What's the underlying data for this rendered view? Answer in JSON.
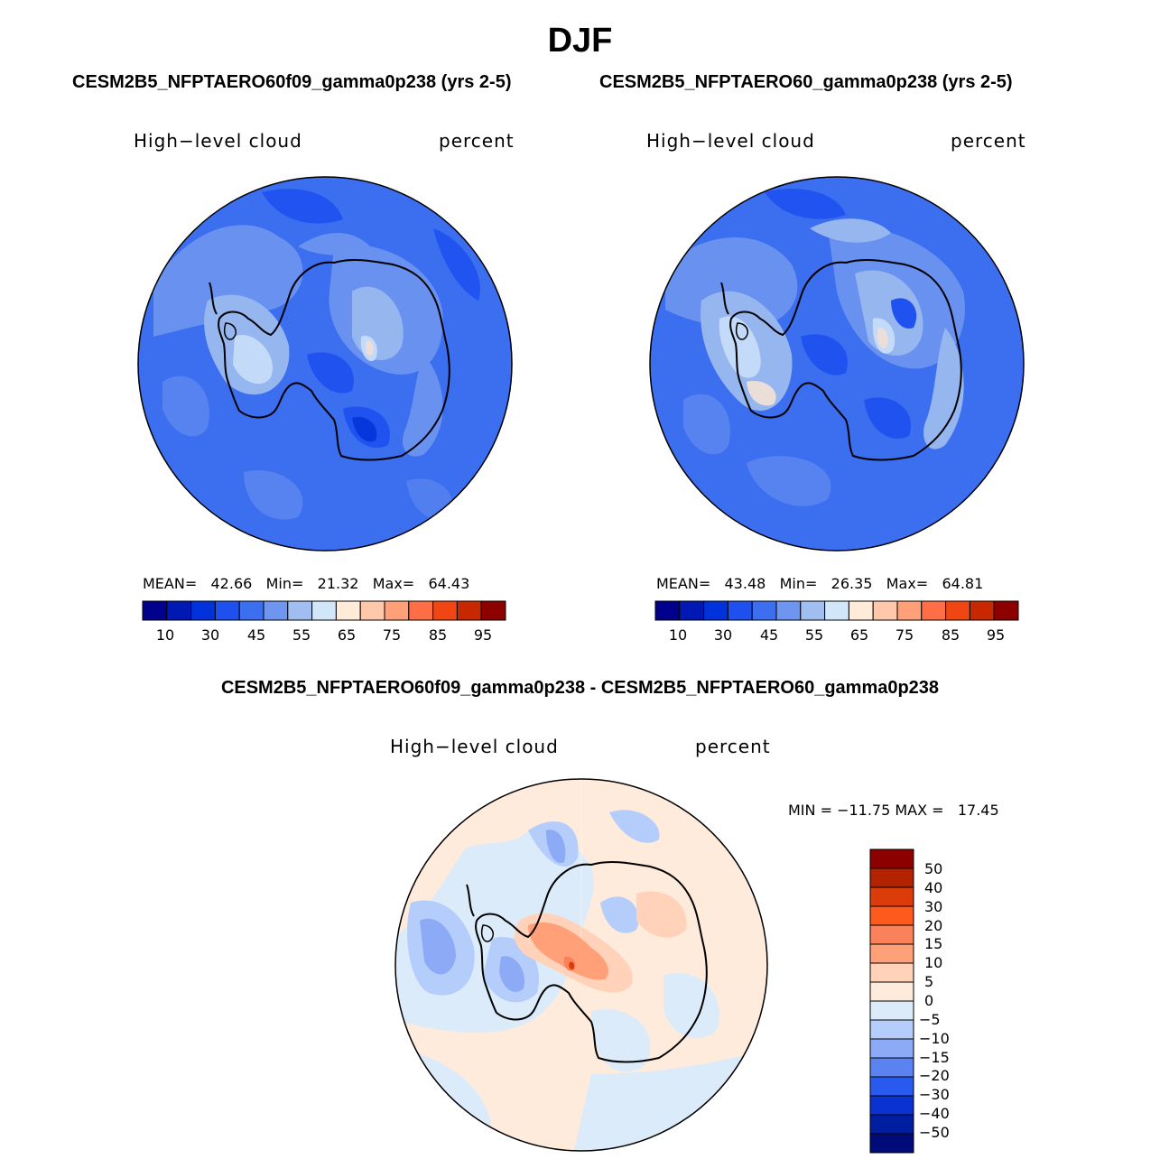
{
  "title": "DJF",
  "panels": [
    {
      "case": "CESM2B5_NFPTAERO60f09_gamma0p238 (yrs 2-5)",
      "variable": "High−level cloud",
      "units": "percent",
      "stats": {
        "mean_label": "MEAN=",
        "mean": "42.66",
        "min_label": "Min=",
        "min": "21.32",
        "max_label": "Max=",
        "max": "64.43"
      },
      "colorbar_ticks": [
        "10",
        "30",
        "45",
        "55",
        "65",
        "75",
        "85",
        "95"
      ]
    },
    {
      "case": "CESM2B5_NFPTAERO60_gamma0p238 (yrs 2-5)",
      "variable": "High−level cloud",
      "units": "percent",
      "stats": {
        "mean_label": "MEAN=",
        "mean": "43.48",
        "min_label": "Min=",
        "min": "26.35",
        "max_label": "Max=",
        "max": "64.81"
      },
      "colorbar_ticks": [
        "10",
        "30",
        "45",
        "55",
        "65",
        "75",
        "85",
        "95"
      ]
    }
  ],
  "diff": {
    "title": "CESM2B5_NFPTAERO60f09_gamma0p238 - CESM2B5_NFPTAERO60_gamma0p238",
    "variable": "High−level cloud",
    "units": "percent",
    "minmax": "MIN = −11.75 MAX =   17.45",
    "colorbar_ticks": [
      "50",
      "40",
      "30",
      "20",
      "15",
      "10",
      "5",
      "0",
      "−5",
      "−10",
      "−15",
      "−20",
      "−30",
      "−40",
      "−50"
    ]
  },
  "colors": {
    "main_scale": [
      "#00008c",
      "#0019b4",
      "#0032dc",
      "#1e50f0",
      "#3c6ef0",
      "#6e96f0",
      "#a0bef0",
      "#d2e6fa",
      "#ffebd7",
      "#ffc8aa",
      "#ffa078",
      "#ff6e46",
      "#f04614",
      "#c82800",
      "#8c0000"
    ],
    "diff_scale_top_to_bottom": [
      "#8c0000",
      "#b42300",
      "#dc3c0a",
      "#ff5a1e",
      "#fa825a",
      "#ffa078",
      "#ffd2b9",
      "#ffebdc",
      "#dcebfa",
      "#b4cdfa",
      "#8caaf5",
      "#5a82f0",
      "#285af0",
      "#0a32d2",
      "#001ea0",
      "#000a78"
    ],
    "ocean_base": "#3c6ef0",
    "diff_base": "#dce9fa"
  }
}
